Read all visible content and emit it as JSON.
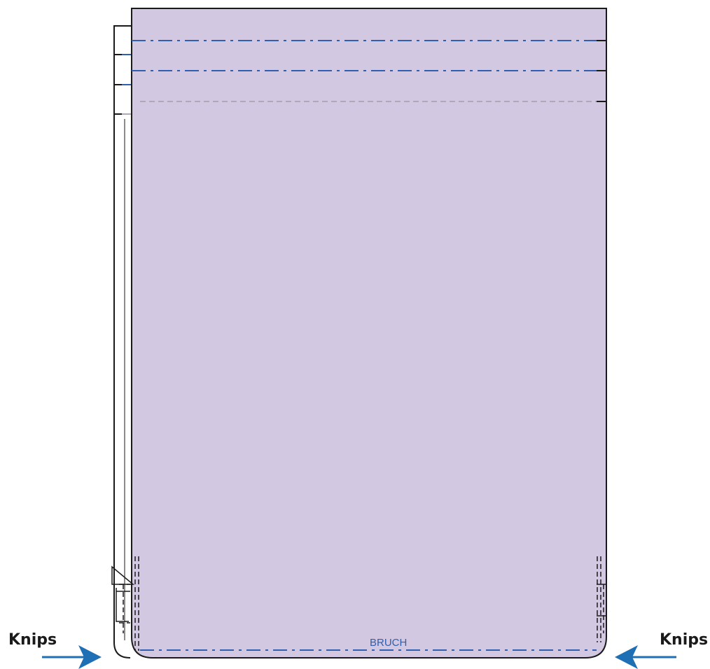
{
  "labels": {
    "knips_left": "Knips",
    "knips_right": "Knips",
    "bruch": "BRUCH"
  },
  "colors": {
    "panel_fill": "#d2c8e2",
    "outline": "#1a1a1a",
    "fold_line": "#2f5fae",
    "guide_line": "#b0a8b8",
    "arrow": "#1f6fb5"
  },
  "icons": {
    "left_arrow": "arrow-right-icon",
    "right_arrow": "arrow-left-icon"
  }
}
